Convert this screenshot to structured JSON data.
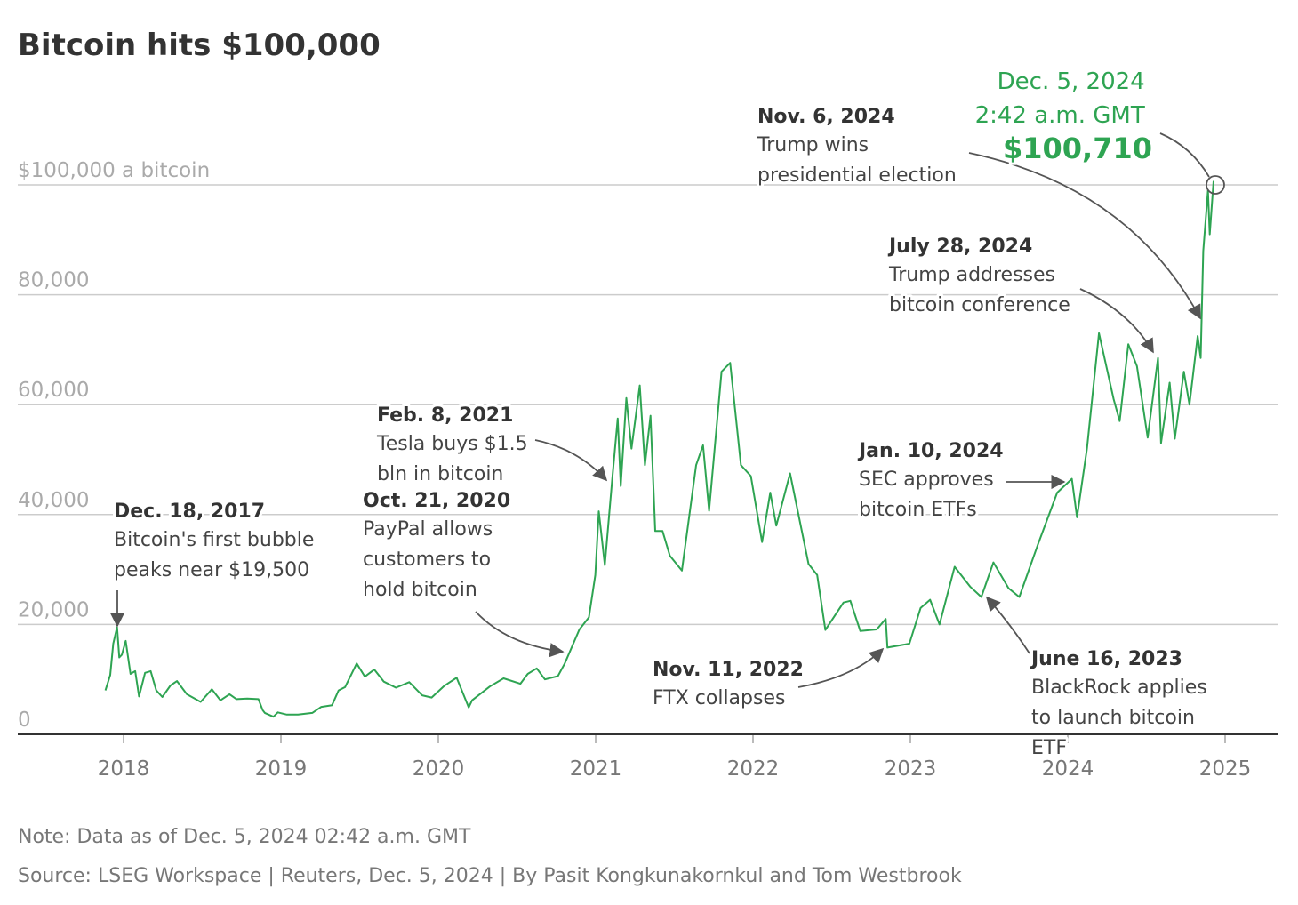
{
  "chart_data": {
    "type": "line",
    "title": "Bitcoin hits $100,000",
    "xlabel": "",
    "ylabel": "",
    "ylim": [
      0,
      100000
    ],
    "xlim": [
      "2017-06-01",
      "2025-06-01"
    ],
    "grid": true,
    "yticks": [
      {
        "value": 100000,
        "label": "$100,000 a bitcoin"
      },
      {
        "value": 80000,
        "label": "80,000"
      },
      {
        "value": 60000,
        "label": "60,000"
      },
      {
        "value": 40000,
        "label": "40,000"
      },
      {
        "value": 20000,
        "label": "20,000"
      },
      {
        "value": 0,
        "label": "0"
      }
    ],
    "xticks": [
      "2018",
      "2019",
      "2020",
      "2021",
      "2022",
      "2023",
      "2024",
      "2025"
    ],
    "line_color": "#2ea452",
    "series": [
      {
        "x": [
          "2017-11-20",
          "2017-12-01",
          "2017-12-08",
          "2017-12-17",
          "2017-12-22",
          "2017-12-28",
          "2018-01-06",
          "2018-01-17",
          "2018-01-28",
          "2018-02-06",
          "2018-02-20",
          "2018-03-05",
          "2018-03-18",
          "2018-04-01",
          "2018-04-20",
          "2018-05-05",
          "2018-05-28",
          "2018-06-29",
          "2018-07-25",
          "2018-08-14",
          "2018-09-04",
          "2018-09-20",
          "2018-10-15",
          "2018-11-10",
          "2018-11-20",
          "2018-11-25",
          "2018-12-15",
          "2018-12-25",
          "2019-01-15",
          "2019-02-10",
          "2019-03-15",
          "2019-04-05",
          "2019-04-30",
          "2019-05-15",
          "2019-05-30",
          "2019-06-26",
          "2019-07-15",
          "2019-08-06",
          "2019-08-28",
          "2019-09-25",
          "2019-10-26",
          "2019-11-25",
          "2019-12-17",
          "2020-01-15",
          "2020-02-13",
          "2020-03-12",
          "2020-03-20",
          "2020-04-30",
          "2020-06-01",
          "2020-07-10",
          "2020-07-27",
          "2020-08-17",
          "2020-09-05",
          "2020-10-05",
          "2020-10-21",
          "2020-11-24",
          "2020-12-16",
          "2020-12-31",
          "2021-01-08",
          "2021-01-22",
          "2021-02-08",
          "2021-02-21",
          "2021-02-28",
          "2021-03-13",
          "2021-03-25",
          "2021-04-13",
          "2021-04-25",
          "2021-05-08",
          "2021-05-19",
          "2021-06-05",
          "2021-06-22",
          "2021-07-20",
          "2021-08-22",
          "2021-09-07",
          "2021-09-21",
          "2021-10-20",
          "2021-11-09",
          "2021-12-04",
          "2021-12-27",
          "2022-01-22",
          "2022-02-10",
          "2022-02-24",
          "2022-03-28",
          "2022-05-10",
          "2022-05-30",
          "2022-06-18",
          "2022-07-30",
          "2022-08-15",
          "2022-09-07",
          "2022-10-15",
          "2022-11-05",
          "2022-11-09",
          "2022-12-30",
          "2023-01-25",
          "2023-02-16",
          "2023-03-10",
          "2023-04-14",
          "2023-05-20",
          "2023-06-15",
          "2023-07-13",
          "2023-08-17",
          "2023-09-11",
          "2023-10-24",
          "2023-12-08",
          "2024-01-11",
          "2024-01-23",
          "2024-02-15",
          "2024-03-14",
          "2024-04-17",
          "2024-05-01",
          "2024-05-21",
          "2024-06-10",
          "2024-07-05",
          "2024-07-29",
          "2024-08-05",
          "2024-08-25",
          "2024-09-06",
          "2024-09-27",
          "2024-10-10",
          "2024-10-29",
          "2024-11-05",
          "2024-11-11",
          "2024-11-22",
          "2024-11-26",
          "2024-12-05"
        ],
        "values": [
          8000,
          10800,
          16500,
          19500,
          14000,
          14500,
          17000,
          11000,
          11500,
          6900,
          11200,
          11500,
          8000,
          6800,
          8900,
          9700,
          7300,
          5900,
          8200,
          6200,
          7300,
          6400,
          6500,
          6400,
          4400,
          3900,
          3200,
          4000,
          3600,
          3600,
          3900,
          5000,
          5300,
          8000,
          8600,
          12900,
          10500,
          11800,
          9600,
          8500,
          9500,
          7100,
          6700,
          8800,
          10300,
          4900,
          6200,
          8700,
          10200,
          9200,
          11000,
          12000,
          10000,
          10600,
          12900,
          19100,
          21300,
          29000,
          40600,
          30800,
          46200,
          57500,
          45200,
          61200,
          52000,
          63500,
          49000,
          58000,
          37000,
          37000,
          32500,
          29800,
          49000,
          52600,
          40700,
          66000,
          67600,
          49000,
          47000,
          35000,
          44000,
          38000,
          47500,
          31000,
          29000,
          19000,
          24000,
          24300,
          18800,
          19100,
          21000,
          15800,
          16500,
          23000,
          24500,
          20000,
          30500,
          26900,
          25000,
          31300,
          26600,
          25000,
          34500,
          44000,
          46500,
          39500,
          52000,
          73000,
          61000,
          57000,
          71000,
          67000,
          54000,
          68500,
          53000,
          64000,
          53800,
          66000,
          60000,
          72500,
          68500,
          88000,
          99000,
          91000,
          100710
        ]
      }
    ],
    "annotations": [
      {
        "date": "Dec. 18, 2017",
        "lines": [
          "Bitcoin's first bubble",
          "peaks near $19,500"
        ]
      },
      {
        "date": "Oct. 21, 2020",
        "lines": [
          "PayPal allows",
          "customers to",
          "hold bitcoin"
        ]
      },
      {
        "date": "Feb. 8, 2021",
        "lines": [
          "Tesla buys $1.5",
          "bln in bitcoin"
        ]
      },
      {
        "date": "Nov. 11, 2022",
        "lines": [
          "FTX collapses"
        ]
      },
      {
        "date": "June 16, 2023",
        "lines": [
          "BlackRock applies",
          "to launch bitcoin",
          "ETF"
        ]
      },
      {
        "date": "Jan. 10, 2024",
        "lines": [
          "SEC approves",
          "bitcoin ETFs"
        ]
      },
      {
        "date": "July 28, 2024",
        "lines": [
          "Trump addresses",
          "bitcoin conference"
        ]
      },
      {
        "date": "Nov. 6, 2024",
        "lines": [
          "Trump wins",
          "presidential election"
        ]
      }
    ],
    "highlight": {
      "date": "Dec. 5, 2024",
      "time": "2:42 a.m. GMT",
      "value": "$100,710",
      "color": "#2ea452"
    }
  },
  "footer": {
    "note": "Note: Data as of Dec. 5, 2024 02:42 a.m. GMT",
    "source": "Source: LSEG Workspace | Reuters, Dec. 5, 2024 | By Pasit Kongkunakornkul and Tom Westbrook"
  }
}
